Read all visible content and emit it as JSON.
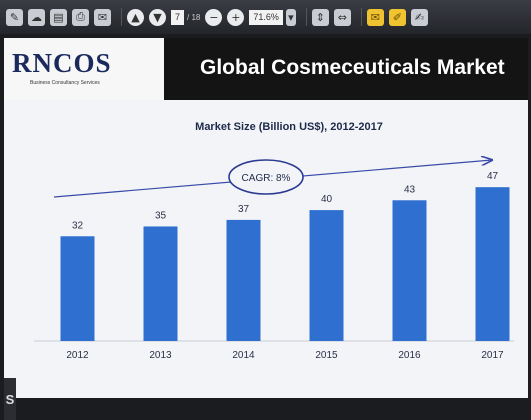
{
  "toolbar": {
    "page_current": "7",
    "page_total": "/ 18",
    "zoom": "71.6%"
  },
  "slide": {
    "logo": "RNCOS",
    "logo_tagline": "Business Consultancy Services",
    "title": "Global Cosmeceuticals Market"
  },
  "chart_data": {
    "type": "bar",
    "title": "Market Size (Billion US$), 2012-2017",
    "categories": [
      "2012",
      "2013",
      "2014",
      "2015",
      "2016",
      "2017"
    ],
    "values": [
      32,
      35,
      37,
      40,
      43,
      47
    ],
    "annotation": "CAGR: 8%",
    "ylim": [
      0,
      55
    ],
    "grid": false,
    "bar_color": "#2f6fd0"
  },
  "edge_label": "S"
}
